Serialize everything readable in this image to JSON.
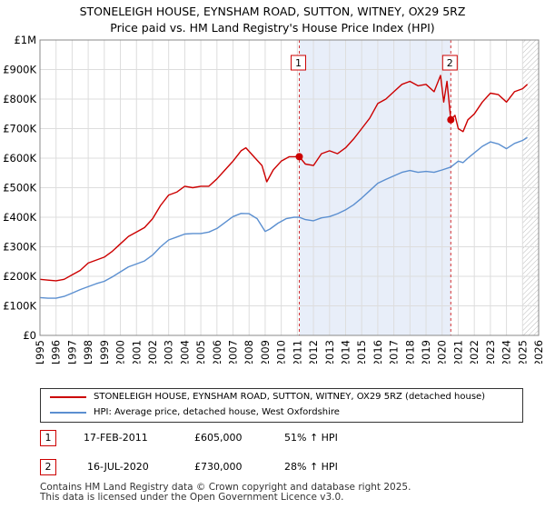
{
  "title_line1": "STONELEIGH HOUSE, EYNSHAM ROAD, SUTTON, WITNEY, OX29 5RZ",
  "title_line2": "Price paid vs. HM Land Registry's House Price Index (HPI)",
  "chart_data": {
    "type": "line",
    "xlim": [
      1995,
      2026
    ],
    "ylim": [
      0,
      1000000
    ],
    "x_ticks": [
      1995,
      1996,
      1997,
      1998,
      1999,
      2000,
      2001,
      2002,
      2003,
      2004,
      2005,
      2006,
      2007,
      2008,
      2009,
      2010,
      2011,
      2012,
      2013,
      2014,
      2015,
      2016,
      2017,
      2018,
      2019,
      2020,
      2021,
      2022,
      2023,
      2024,
      2025,
      2026
    ],
    "y_ticks": [
      {
        "value": 0,
        "label": "£0"
      },
      {
        "value": 100000,
        "label": "£100K"
      },
      {
        "value": 200000,
        "label": "£200K"
      },
      {
        "value": 300000,
        "label": "£300K"
      },
      {
        "value": 400000,
        "label": "£400K"
      },
      {
        "value": 500000,
        "label": "£500K"
      },
      {
        "value": 600000,
        "label": "£600K"
      },
      {
        "value": 700000,
        "label": "£700K"
      },
      {
        "value": 800000,
        "label": "£800K"
      },
      {
        "value": 900000,
        "label": "£900K"
      },
      {
        "value": 1000000,
        "label": "£1M"
      }
    ],
    "grid": true,
    "shaded_region": [
      2011.12,
      2020.54
    ],
    "hatched_from": 2025.0,
    "series": [
      {
        "name": "STONELEIGH HOUSE, EYNSHAM ROAD, SUTTON, WITNEY, OX29 5RZ (detached house)",
        "color": "#cc0000",
        "points": [
          [
            1995.0,
            190000
          ],
          [
            1995.5,
            187000
          ],
          [
            1996.0,
            185000
          ],
          [
            1996.5,
            190000
          ],
          [
            1997.0,
            205000
          ],
          [
            1997.5,
            220000
          ],
          [
            1998.0,
            245000
          ],
          [
            1998.5,
            255000
          ],
          [
            1999.0,
            265000
          ],
          [
            1999.5,
            285000
          ],
          [
            2000.0,
            310000
          ],
          [
            2000.5,
            335000
          ],
          [
            2001.0,
            350000
          ],
          [
            2001.5,
            365000
          ],
          [
            2002.0,
            395000
          ],
          [
            2002.5,
            440000
          ],
          [
            2003.0,
            475000
          ],
          [
            2003.5,
            485000
          ],
          [
            2004.0,
            505000
          ],
          [
            2004.5,
            500000
          ],
          [
            2005.0,
            505000
          ],
          [
            2005.5,
            505000
          ],
          [
            2006.0,
            530000
          ],
          [
            2006.5,
            560000
          ],
          [
            2007.0,
            590000
          ],
          [
            2007.5,
            625000
          ],
          [
            2007.8,
            635000
          ],
          [
            2008.3,
            605000
          ],
          [
            2008.8,
            575000
          ],
          [
            2009.1,
            520000
          ],
          [
            2009.5,
            560000
          ],
          [
            2010.0,
            590000
          ],
          [
            2010.5,
            605000
          ],
          [
            2011.12,
            605000
          ],
          [
            2011.5,
            580000
          ],
          [
            2012.0,
            575000
          ],
          [
            2012.5,
            615000
          ],
          [
            2013.0,
            625000
          ],
          [
            2013.5,
            615000
          ],
          [
            2014.0,
            635000
          ],
          [
            2014.5,
            665000
          ],
          [
            2015.0,
            700000
          ],
          [
            2015.5,
            735000
          ],
          [
            2016.0,
            785000
          ],
          [
            2016.5,
            800000
          ],
          [
            2017.0,
            825000
          ],
          [
            2017.5,
            850000
          ],
          [
            2018.0,
            860000
          ],
          [
            2018.5,
            845000
          ],
          [
            2019.0,
            850000
          ],
          [
            2019.5,
            825000
          ],
          [
            2019.9,
            880000
          ],
          [
            2020.1,
            790000
          ],
          [
            2020.3,
            860000
          ],
          [
            2020.54,
            730000
          ],
          [
            2020.8,
            745000
          ],
          [
            2021.0,
            700000
          ],
          [
            2021.3,
            690000
          ],
          [
            2021.6,
            730000
          ],
          [
            2022.0,
            750000
          ],
          [
            2022.5,
            790000
          ],
          [
            2023.0,
            820000
          ],
          [
            2023.5,
            815000
          ],
          [
            2024.0,
            790000
          ],
          [
            2024.5,
            825000
          ],
          [
            2025.0,
            835000
          ],
          [
            2025.3,
            850000
          ]
        ]
      },
      {
        "name": "HPI: Average price, detached house, West Oxfordshire",
        "color": "#5b8fd0",
        "points": [
          [
            1995.0,
            128000
          ],
          [
            1995.5,
            126000
          ],
          [
            1996.0,
            126000
          ],
          [
            1996.5,
            132000
          ],
          [
            1997.0,
            143000
          ],
          [
            1997.5,
            155000
          ],
          [
            1998.0,
            165000
          ],
          [
            1998.5,
            175000
          ],
          [
            1999.0,
            183000
          ],
          [
            1999.5,
            198000
          ],
          [
            2000.0,
            215000
          ],
          [
            2000.5,
            232000
          ],
          [
            2001.0,
            242000
          ],
          [
            2001.5,
            252000
          ],
          [
            2002.0,
            272000
          ],
          [
            2002.5,
            300000
          ],
          [
            2003.0,
            323000
          ],
          [
            2003.5,
            333000
          ],
          [
            2004.0,
            343000
          ],
          [
            2004.5,
            345000
          ],
          [
            2005.0,
            345000
          ],
          [
            2005.5,
            350000
          ],
          [
            2006.0,
            362000
          ],
          [
            2006.5,
            382000
          ],
          [
            2007.0,
            402000
          ],
          [
            2007.5,
            413000
          ],
          [
            2008.0,
            412000
          ],
          [
            2008.5,
            395000
          ],
          [
            2009.0,
            352000
          ],
          [
            2009.3,
            360000
          ],
          [
            2009.8,
            380000
          ],
          [
            2010.3,
            395000
          ],
          [
            2010.8,
            400000
          ],
          [
            2011.12,
            400000
          ],
          [
            2011.5,
            392000
          ],
          [
            2012.0,
            388000
          ],
          [
            2012.5,
            398000
          ],
          [
            2013.0,
            402000
          ],
          [
            2013.5,
            412000
          ],
          [
            2014.0,
            425000
          ],
          [
            2014.5,
            442000
          ],
          [
            2015.0,
            465000
          ],
          [
            2015.5,
            490000
          ],
          [
            2016.0,
            515000
          ],
          [
            2016.5,
            528000
          ],
          [
            2017.0,
            540000
          ],
          [
            2017.5,
            552000
          ],
          [
            2018.0,
            558000
          ],
          [
            2018.5,
            552000
          ],
          [
            2019.0,
            555000
          ],
          [
            2019.5,
            552000
          ],
          [
            2020.0,
            560000
          ],
          [
            2020.54,
            570000
          ],
          [
            2021.0,
            590000
          ],
          [
            2021.3,
            585000
          ],
          [
            2021.6,
            600000
          ],
          [
            2022.0,
            618000
          ],
          [
            2022.5,
            640000
          ],
          [
            2023.0,
            655000
          ],
          [
            2023.5,
            648000
          ],
          [
            2024.0,
            632000
          ],
          [
            2024.5,
            650000
          ],
          [
            2025.0,
            660000
          ],
          [
            2025.3,
            670000
          ]
        ]
      }
    ],
    "annotations": [
      {
        "label": "1",
        "x": 2011.12,
        "y": 605000,
        "date": "17-FEB-2011",
        "price": "£605,000",
        "hpi_change": "51% ↑ HPI"
      },
      {
        "label": "2",
        "x": 2020.54,
        "y": 730000,
        "date": "16-JUL-2020",
        "price": "£730,000",
        "hpi_change": "28% ↑ HPI"
      }
    ]
  },
  "legend": {
    "items": [
      {
        "label": "STONELEIGH HOUSE, EYNSHAM ROAD, SUTTON, WITNEY, OX29 5RZ (detached house)",
        "color": "#cc0000"
      },
      {
        "label": "HPI: Average price, detached house, West Oxfordshire",
        "color": "#5b8fd0"
      }
    ]
  },
  "footer": {
    "line1": "Contains HM Land Registry data © Crown copyright and database right 2025.",
    "line2": "This data is licensed under the Open Government Licence v3.0."
  }
}
